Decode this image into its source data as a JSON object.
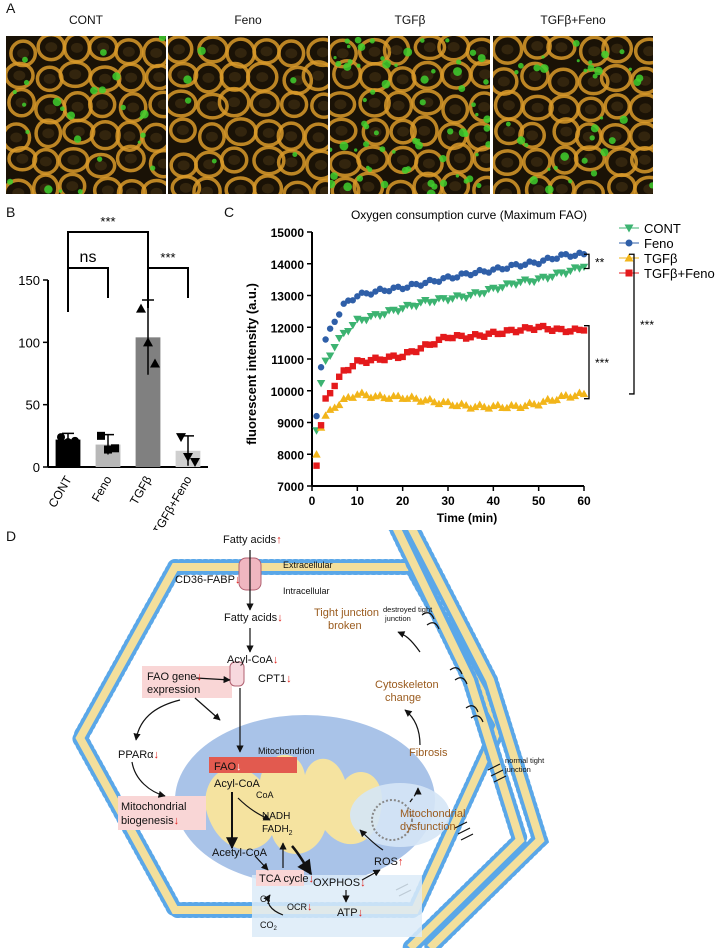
{
  "panels": {
    "a": "A",
    "b": "B",
    "c": "C",
    "d": "D"
  },
  "panel_a": {
    "labels": [
      "CONT",
      "Feno",
      "TGFβ",
      "TGFβ+Feno"
    ],
    "green_density": [
      0.35,
      0.08,
      0.95,
      0.5
    ]
  },
  "colors": {
    "cont": "#3cb371",
    "feno": "#2f5fa8",
    "tgfb": "#f2b51a",
    "tgfb_feno": "#e41a1c",
    "membrane": "#5aa7e8",
    "lipid_core": "#f5e3a0",
    "mito": "#a9c3e8",
    "highlight": "#f9d6d6",
    "red_box": "#e25a4f",
    "brown_text": "#9a5b1e",
    "arrow_red": "#e0201b"
  },
  "chart_data": [
    {
      "type": "bar",
      "categories": [
        "CONT",
        "Feno",
        "TGFβ",
        "TGFβ+Feno"
      ],
      "values": [
        22,
        18,
        104,
        13
      ],
      "errors": [
        5,
        8,
        30,
        12
      ],
      "points": [
        [
          24,
          20,
          21
        ],
        [
          25,
          14,
          15
        ],
        [
          127,
          100,
          83
        ],
        [
          24,
          8,
          4
        ]
      ],
      "bar_colors": [
        "#000000",
        "#b8b8b8",
        "#808080",
        "#cfcfcf"
      ],
      "ylim": [
        0,
        150
      ],
      "yticks": [
        0,
        50,
        100,
        150
      ],
      "significance": [
        {
          "from": 0,
          "to": 1,
          "label": "ns"
        },
        {
          "from": 0,
          "to": 2,
          "label": "***"
        },
        {
          "from": 2,
          "to": 3,
          "label": "***"
        }
      ]
    },
    {
      "type": "scatter",
      "title": "Oxygen consumption curve (Maximum FAO)",
      "xlabel": "Time (min)",
      "ylabel": "fluorescent intensity (a.u.)",
      "xlim": [
        0,
        60
      ],
      "ylim": [
        7000,
        15000
      ],
      "xticks": [
        0,
        10,
        20,
        30,
        40,
        50,
        60
      ],
      "yticks": [
        7000,
        8000,
        9000,
        10000,
        11000,
        12000,
        13000,
        14000,
        15000
      ],
      "legend_position": "top-right",
      "series": [
        {
          "name": "CONT",
          "marker": "triangle-down",
          "color": "#3cb371",
          "x": [
            1,
            2,
            3,
            5,
            7,
            10,
            15,
            20,
            25,
            30,
            35,
            40,
            45,
            50,
            55,
            60
          ],
          "y": [
            8800,
            10200,
            10900,
            11400,
            11800,
            12200,
            12400,
            12600,
            12800,
            12900,
            13000,
            13200,
            13400,
            13500,
            13700,
            13900
          ]
        },
        {
          "name": "Feno",
          "marker": "circle",
          "color": "#2f5fa8",
          "x": [
            1,
            2,
            3,
            5,
            7,
            10,
            15,
            20,
            25,
            30,
            35,
            40,
            45,
            50,
            55,
            60
          ],
          "y": [
            9200,
            10800,
            11600,
            12200,
            12700,
            13000,
            13150,
            13250,
            13400,
            13550,
            13700,
            13800,
            13950,
            14050,
            14250,
            14300
          ]
        },
        {
          "name": "TGFβ",
          "marker": "triangle-up",
          "color": "#f2b51a",
          "x": [
            1,
            2,
            3,
            5,
            7,
            10,
            15,
            20,
            25,
            30,
            35,
            40,
            45,
            50,
            55,
            60
          ],
          "y": [
            8000,
            8900,
            9200,
            9500,
            9700,
            9900,
            9800,
            9800,
            9700,
            9600,
            9500,
            9500,
            9500,
            9600,
            9800,
            9900
          ]
        },
        {
          "name": "TGFβ+Feno",
          "marker": "square",
          "color": "#e41a1c",
          "x": [
            1,
            2,
            3,
            5,
            7,
            10,
            15,
            20,
            25,
            30,
            35,
            40,
            45,
            50,
            55,
            60
          ],
          "y": [
            7700,
            8900,
            9700,
            10200,
            10600,
            10900,
            11000,
            11100,
            11400,
            11700,
            11700,
            11800,
            11900,
            12000,
            11900,
            11900
          ]
        }
      ],
      "significance": [
        {
          "label": "**",
          "y_top": 14300,
          "y_bottom": 13850
        },
        {
          "label": "***",
          "y_top": 14300,
          "y_bottom": 9900
        },
        {
          "label": "***",
          "y_top": 12050,
          "y_bottom": 9750
        }
      ]
    }
  ],
  "diagram": {
    "fatty_acids_top": "Fatty acids",
    "extracellular": "Extracellular",
    "intracellular": "Intracellular",
    "cd36": "CD36-FABP",
    "fatty_acids_mid": "Fatty acids",
    "acyl_coa_top": "Acyl-CoA",
    "cpt1": "CPT1",
    "fao_gene_1": "FAO gene",
    "fao_gene_2": "expression",
    "ppara": "PPARα",
    "mito_biogenesis_1": "Mitochondrial",
    "mito_biogenesis_2": "biogenesis",
    "mitochondrion": "Mitochondrion",
    "fao": "FAO",
    "acyl_coa_mito": "Acyl-CoA",
    "coa": "CoA",
    "nadh": "NADH",
    "fadh": "FADH",
    "fadh_sub": "2",
    "acetyl_coa": "Acetyl-CoA",
    "tca": "TCA cycle",
    "oxphos": "OXPHOS",
    "atp": "ATP",
    "ros": "ROS",
    "o2": "O",
    "o2_sub": "2",
    "co2": "CO",
    "co2_sub": "2",
    "ocr": "OCR",
    "mito_dysfunction_1": "Mitochondrial",
    "mito_dysfunction_2": "dysfunction",
    "fibrosis": "Fibrosis",
    "cytoskeleton_1": "Cytoskeleton",
    "cytoskeleton_2": "change",
    "tight_junction_1": "Tight junction",
    "tight_junction_2": "broken",
    "destroyed_tj_1": "destroyed tight",
    "destroyed_tj_2": "junction",
    "normal_tj_1": "normal tight",
    "normal_tj_2": "junction",
    "arrow_up": "↑",
    "arrow_down": "↓"
  }
}
